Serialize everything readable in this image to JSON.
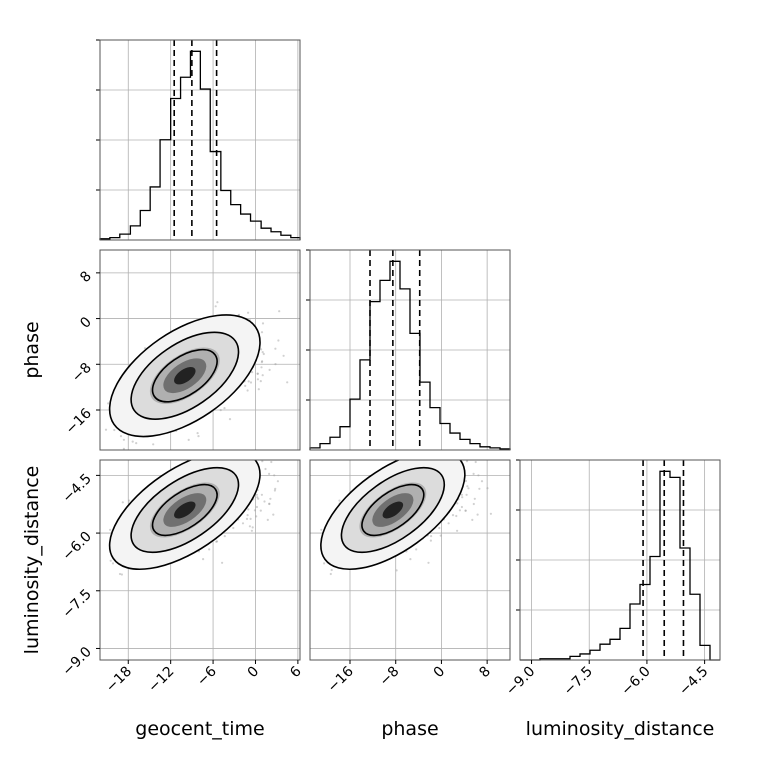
{
  "chart_data": {
    "type": "corner",
    "parameters": [
      "geocent_time",
      "phase",
      "luminosity_distance"
    ],
    "axis_labels": {
      "x": [
        "geocent_time",
        "phase",
        "luminosity_distance"
      ],
      "y": [
        "phase",
        "luminosity_distance"
      ]
    },
    "ranges": {
      "geocent_time": [
        -22,
        6.3
      ],
      "phase": [
        -23,
        12
      ],
      "luminosity_distance": [
        -9.3,
        -4.1
      ]
    },
    "ticks": {
      "geocent_time": [
        -18,
        -12,
        -6,
        0,
        6
      ],
      "phase": [
        -16,
        -8,
        0,
        8
      ],
      "luminosity_distance": [
        -9.0,
        -7.5,
        -6.0,
        -4.5
      ]
    },
    "tick_labels": {
      "geocent_time": [
        "−18",
        "−12",
        "−6",
        "0",
        "6"
      ],
      "phase": [
        "−16",
        "−8",
        "0",
        "8"
      ],
      "luminosity_distance": [
        "−9.0",
        "−7.5",
        "−6.0",
        "−4.5"
      ]
    },
    "histograms": {
      "geocent_time": {
        "edges": [
          -22,
          -20.6,
          -19.2,
          -17.7,
          -16.3,
          -14.9,
          -13.5,
          -12.0,
          -10.6,
          -9.2,
          -7.8,
          -6.4,
          -4.9,
          -3.5,
          -2.1,
          -0.7,
          0.8,
          2.2,
          3.6,
          5.0,
          6.3
        ],
        "counts": [
          1,
          2,
          5,
          12,
          25,
          45,
          85,
          120,
          138,
          160,
          128,
          75,
          42,
          30,
          22,
          16,
          10,
          7,
          4,
          2
        ],
        "quantiles": [
          -11.5,
          -9.0,
          -5.5
        ]
      },
      "phase": {
        "edges": [
          -23,
          -21.25,
          -19.5,
          -17.75,
          -16,
          -14.25,
          -12.5,
          -10.75,
          -9,
          -7.25,
          -5.5,
          -3.75,
          -2,
          -0.25,
          1.5,
          3.25,
          5,
          6.75,
          8.5,
          10.25,
          12
        ],
        "counts": [
          2,
          6,
          12,
          22,
          48,
          85,
          140,
          160,
          178,
          152,
          110,
          64,
          40,
          25,
          16,
          10,
          6,
          3,
          2,
          1
        ],
        "quantiles": [
          -12.5,
          -8.5,
          -3.8
        ]
      },
      "luminosity_distance": {
        "edges": [
          -9.3,
          -9.04,
          -8.78,
          -8.52,
          -8.26,
          -8.0,
          -7.74,
          -7.48,
          -7.22,
          -6.96,
          -6.7,
          -6.44,
          -6.18,
          -5.92,
          -5.66,
          -5.4,
          -5.14,
          -4.88,
          -4.62,
          -4.36,
          -4.1
        ],
        "counts": [
          0,
          0,
          1,
          1,
          1,
          3,
          5,
          8,
          13,
          17,
          26,
          46,
          62,
          85,
          155,
          150,
          92,
          54,
          12,
          0
        ],
        "quantiles": [
          -6.1,
          -5.55,
          -5.05
        ]
      }
    },
    "pairs": [
      {
        "x": "geocent_time",
        "y": "phase",
        "center": [
          -10,
          -10
        ],
        "sigma": [
          3.8,
          3.8
        ],
        "rho": 0.55,
        "points": 1400,
        "contour_levels": [
          1.2,
          2.0,
          2.8
        ]
      },
      {
        "x": "geocent_time",
        "y": "luminosity_distance",
        "center": [
          -10,
          -5.4
        ],
        "sigma": [
          3.8,
          0.55
        ],
        "rho": 0.6,
        "points": 1400,
        "contour_levels": [
          1.2,
          2.0,
          2.8
        ]
      },
      {
        "x": "phase",
        "y": "luminosity_distance",
        "center": [
          -8.5,
          -5.4
        ],
        "sigma": [
          4.5,
          0.55
        ],
        "rho": 0.6,
        "points": 1400,
        "contour_levels": [
          1.2,
          2.0,
          2.8
        ]
      }
    ]
  }
}
